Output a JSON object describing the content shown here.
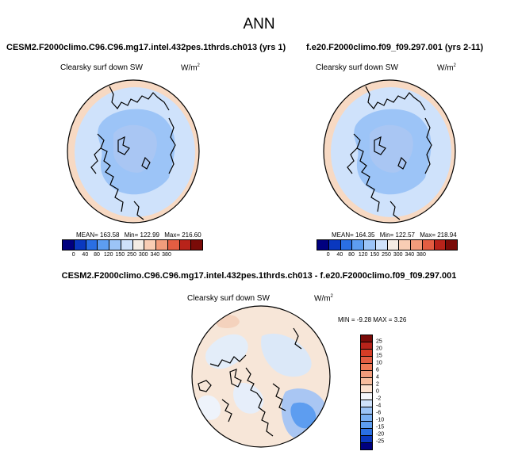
{
  "title": "ANN",
  "panels": [
    {
      "case": "CESM2.F2000climo.C96.C96.mg17.intel.432pes.1thrds.ch013 (yrs 1)",
      "variable": "Clearsky surf down SW",
      "units_base": "W/m",
      "units_exp": "2",
      "mean": "MEAN= 163.58",
      "min": "Min= 122.99",
      "max": "Max= 216.60"
    },
    {
      "case": "f.e20.F2000climo.f09_f09.297.001 (yrs 2-11)",
      "variable": "Clearsky surf down SW",
      "units_base": "W/m",
      "units_exp": "2",
      "mean": "MEAN= 164.35",
      "min": "Min= 122.57",
      "max": "Max= 218.94"
    }
  ],
  "diff": {
    "title": "CESM2.F2000climo.C96.C96.mg17.intel.432pes.1thrds.ch013 - f.e20.F2000climo.f09_f09.297.001",
    "variable": "Clearsky surf down SW",
    "units_base": "W/m",
    "units_exp": "2",
    "minmax": "MIN = -9.28 MAX = 3.26"
  },
  "colorbar_main": {
    "labels": [
      "0",
      "40",
      "80",
      "120",
      "150",
      "250",
      "300",
      "340",
      "380"
    ],
    "colors": [
      "#00007f",
      "#0a38bf",
      "#2a6fe3",
      "#5d9df0",
      "#9cc4f7",
      "#cfe2fb",
      "#f4ece4",
      "#f9cdb4",
      "#f29c7b",
      "#e35d42",
      "#b8231a",
      "#7a0b08"
    ]
  },
  "colorbar_diff": {
    "labels": [
      "25",
      "20",
      "15",
      "10",
      "6",
      "4",
      "2",
      "0",
      "-2",
      "-4",
      "-6",
      "-10",
      "-15",
      "-20",
      "-25"
    ],
    "colors": [
      "#7a0b08",
      "#b8231a",
      "#d63d26",
      "#e35d42",
      "#ef7a57",
      "#f29c7b",
      "#f7bd9e",
      "#fbe1cf",
      "#f4f6fb",
      "#cfe2fb",
      "#9cc4f7",
      "#79aff3",
      "#5d9df0",
      "#2a6fe3",
      "#0a38bf",
      "#00007f"
    ]
  }
}
